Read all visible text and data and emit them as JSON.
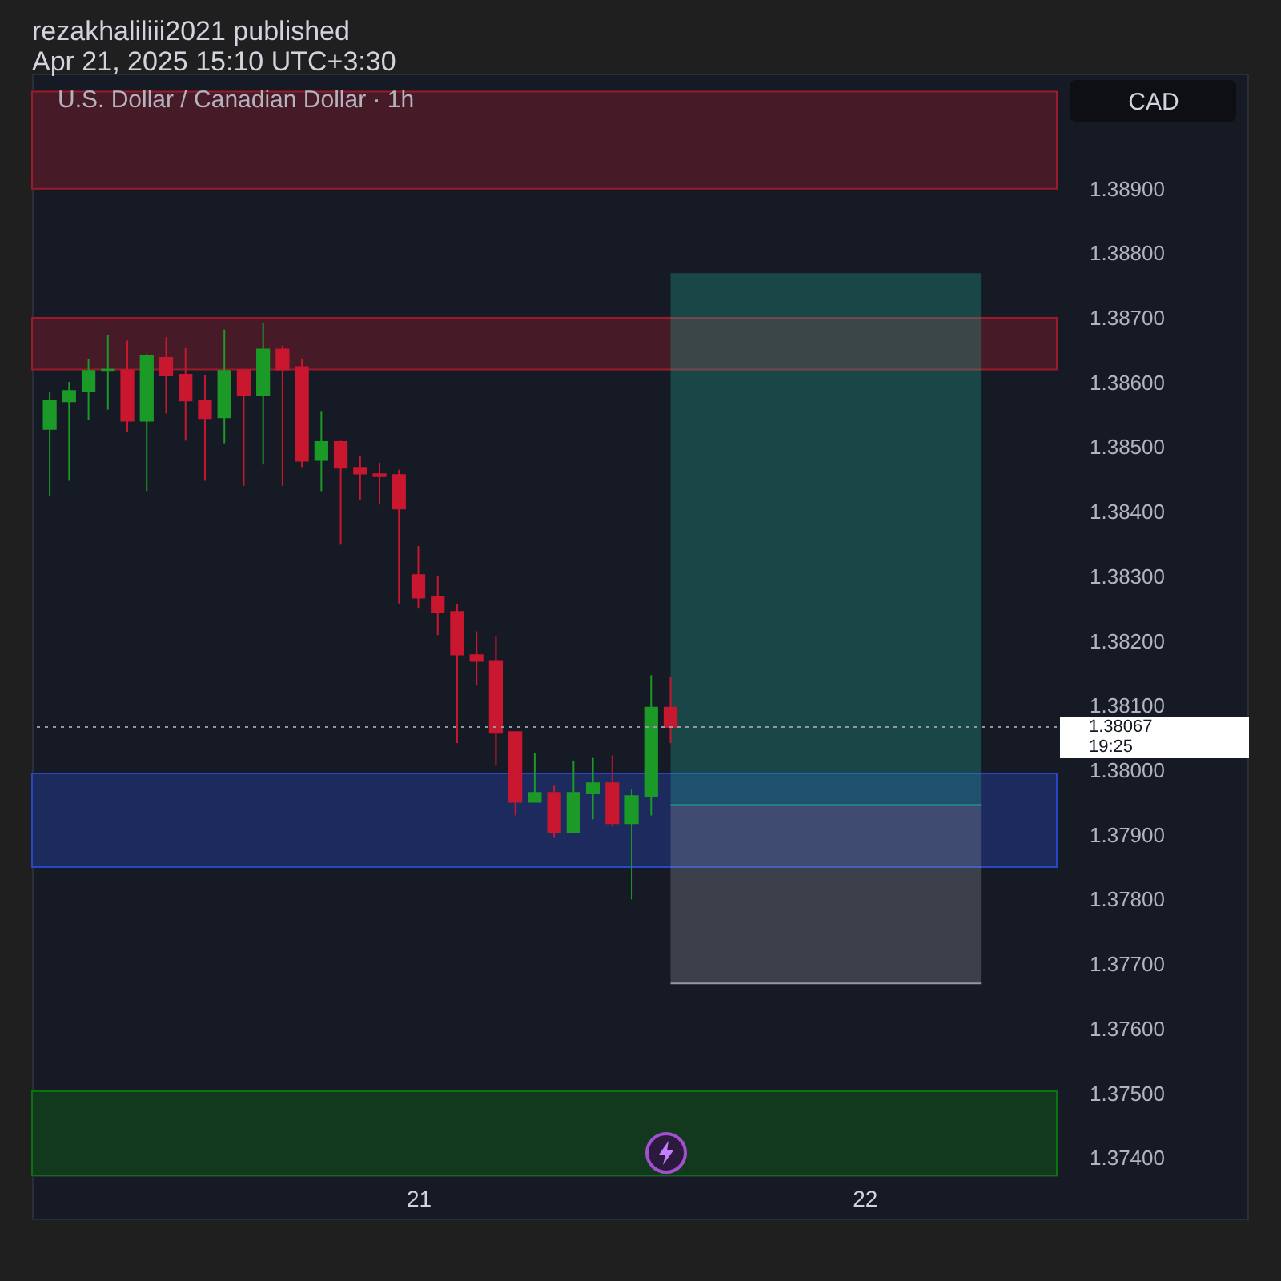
{
  "chart_data": {
    "type": "candlestick",
    "title": "rezakhaliliii2021 published",
    "subtitle": "Apr 21, 2025 15:10 UTC+3:30",
    "ylabel": "CAD",
    "annotations": [
      "U.S. Dollar / Canadian Dollar · 1h"
    ],
    "categories": [
      null,
      null,
      null,
      null,
      null,
      null,
      null,
      null,
      null,
      null,
      null,
      null,
      null,
      null,
      null,
      null,
      null,
      null,
      null,
      "21",
      null,
      null,
      null,
      null,
      null,
      null,
      null,
      null,
      null,
      null,
      null,
      null,
      null,
      null,
      null,
      null,
      null,
      null,
      null,
      null,
      null,
      null,
      "22",
      null,
      null,
      null,
      null,
      null,
      null,
      null,
      null,
      null
    ],
    "ohlc": [
      [
        1.38528,
        1.38585,
        1.38424,
        1.38572
      ],
      [
        1.38571,
        1.38601,
        1.38448,
        1.38587
      ],
      [
        1.38586,
        1.38637,
        1.38542,
        1.38618
      ],
      [
        1.38618,
        1.38674,
        1.38558,
        1.3862
      ],
      [
        1.38619,
        1.38665,
        1.38524,
        1.38541
      ],
      [
        1.38541,
        1.38644,
        1.38432,
        1.38641
      ],
      [
        1.38638,
        1.3867,
        1.38552,
        1.38611
      ],
      [
        1.38612,
        1.38653,
        1.3851,
        1.38572
      ],
      [
        1.38572,
        1.38612,
        1.38448,
        1.38545
      ],
      [
        1.38546,
        1.38682,
        1.38506,
        1.38618
      ],
      [
        1.38619,
        1.38619,
        1.3844,
        1.3858
      ],
      [
        1.3858,
        1.38692,
        1.38473,
        1.38651
      ],
      [
        1.38651,
        1.38657,
        1.3844,
        1.3862
      ],
      [
        1.38624,
        1.38637,
        1.38469,
        1.38479
      ],
      [
        1.3848,
        1.38556,
        1.38432,
        1.38508
      ],
      [
        1.38508,
        1.3851,
        1.38349,
        1.38468
      ],
      [
        1.38468,
        1.38486,
        1.38419,
        1.38459
      ],
      [
        1.38458,
        1.38476,
        1.38411,
        1.38455
      ],
      [
        1.38457,
        1.38465,
        1.38258,
        1.38405
      ],
      [
        1.38302,
        1.38347,
        1.3825,
        1.38267
      ],
      [
        1.38268,
        1.383,
        1.38209,
        1.38244
      ],
      [
        1.38245,
        1.38257,
        1.38042,
        1.38179
      ],
      [
        1.38178,
        1.38215,
        1.38131,
        1.38169
      ],
      [
        1.38169,
        1.38207,
        1.38007,
        1.38058
      ],
      [
        1.38059,
        1.38059,
        1.3793,
        1.37951
      ],
      [
        1.37951,
        1.38026,
        1.37951,
        1.37965
      ],
      [
        1.37965,
        1.37976,
        1.37895,
        1.37904
      ],
      [
        1.37904,
        1.38015,
        1.37904,
        1.37965
      ],
      [
        1.37964,
        1.38019,
        1.37924,
        1.3798
      ],
      [
        1.3798,
        1.38023,
        1.37912,
        1.37918
      ],
      [
        1.37918,
        1.3797,
        1.378,
        1.3796
      ],
      [
        1.37959,
        1.38147,
        1.3793,
        1.38097
      ],
      [
        1.38097,
        1.38145,
        1.38042,
        1.38067
      ],
      null,
      null,
      null,
      null,
      null,
      null,
      null,
      null,
      null,
      null,
      null,
      null,
      null,
      null,
      null,
      null,
      null,
      null,
      null
    ],
    "colors": [
      "#1c9a27",
      "#1c9a27",
      "#1c9a27",
      "#1c9a27",
      "#c9172f",
      "#1c9a27",
      "#c9172f",
      "#c9172f",
      "#c9172f",
      "#1c9a27",
      "#c9172f",
      "#1c9a27",
      "#c9172f",
      "#c9172f",
      "#1c9a27",
      "#c9172f",
      "#c9172f",
      "#c9172f",
      "#c9172f",
      "#c9172f",
      "#c9172f",
      "#c9172f",
      "#c9172f",
      "#c9172f",
      "#c9172f",
      "#1c9a27",
      "#c9172f",
      "#1c9a27",
      "#1c9a27",
      "#c9172f",
      "#1c9a27",
      "#1c9a27",
      "#c9172f",
      null,
      null,
      null,
      null,
      null,
      null,
      null,
      null,
      null,
      null,
      null,
      null,
      null,
      null,
      null,
      null,
      null,
      null,
      null
    ],
    "series": [
      {
        "type": "line",
        "color": "#22ab94",
        "values": [
          null,
          null,
          null,
          null,
          null,
          null,
          null,
          null,
          null,
          null,
          null,
          null,
          null,
          null,
          null,
          null,
          null,
          null,
          null,
          null,
          null,
          null,
          null,
          null,
          null,
          null,
          null,
          null,
          null,
          null,
          null,
          null,
          1.37946,
          1.37946,
          1.37946,
          1.37946,
          1.37946,
          1.37946,
          1.37946,
          1.37946,
          1.37946,
          1.37946,
          1.37946,
          1.37946,
          1.37946,
          1.37946,
          1.37946,
          1.37946,
          1.37946,
          null,
          null,
          null
        ],
        "lower": [
          null,
          null,
          null,
          null,
          null,
          null,
          null,
          null,
          null,
          null,
          null,
          null,
          null,
          null,
          null,
          null,
          null,
          null,
          null,
          null,
          null,
          null,
          null,
          null,
          null,
          null,
          null,
          null,
          null,
          null,
          null,
          null,
          1.37946,
          1.37946,
          1.37946,
          1.37946,
          1.37946,
          1.37946,
          1.37946,
          1.37946,
          1.37946,
          1.37946,
          1.37946,
          1.37946,
          1.37946,
          1.37946,
          1.37946,
          1.37946,
          1.37946,
          null,
          null,
          null
        ],
        "upper": [
          null,
          null,
          null,
          null,
          null,
          null,
          null,
          null,
          null,
          null,
          null,
          null,
          null,
          null,
          null,
          null,
          null,
          null,
          null,
          null,
          null,
          null,
          null,
          null,
          null,
          null,
          null,
          null,
          null,
          null,
          null,
          null,
          1.38769,
          1.38769,
          1.38769,
          1.38769,
          1.38769,
          1.38769,
          1.38769,
          1.38769,
          1.38769,
          1.38769,
          1.38769,
          1.38769,
          1.38769,
          1.38769,
          1.38769,
          1.38769,
          1.38769,
          null,
          null,
          null
        ]
      },
      {
        "type": "line",
        "color": "#9598a1",
        "values": [
          null,
          null,
          null,
          null,
          null,
          null,
          null,
          null,
          null,
          null,
          null,
          null,
          null,
          null,
          null,
          null,
          null,
          null,
          null,
          null,
          null,
          null,
          null,
          null,
          null,
          null,
          null,
          null,
          null,
          null,
          null,
          null,
          1.3767,
          1.3767,
          1.3767,
          1.3767,
          1.3767,
          1.3767,
          1.3767,
          1.3767,
          1.3767,
          1.3767,
          1.3767,
          1.3767,
          1.3767,
          1.3767,
          1.3767,
          1.3767,
          1.3767,
          null,
          null,
          null
        ],
        "lower": [
          null,
          null,
          null,
          null,
          null,
          null,
          null,
          null,
          null,
          null,
          null,
          null,
          null,
          null,
          null,
          null,
          null,
          null,
          null,
          null,
          null,
          null,
          null,
          null,
          null,
          null,
          null,
          null,
          null,
          null,
          null,
          null,
          1.3767,
          1.3767,
          1.3767,
          1.3767,
          1.3767,
          1.3767,
          1.3767,
          1.3767,
          1.3767,
          1.3767,
          1.3767,
          1.3767,
          1.3767,
          1.3767,
          1.3767,
          1.3767,
          1.3767,
          null,
          null,
          null
        ],
        "upper": [
          null,
          null,
          null,
          null,
          null,
          null,
          null,
          null,
          null,
          null,
          null,
          null,
          null,
          null,
          null,
          null,
          null,
          null,
          null,
          null,
          null,
          null,
          null,
          null,
          null,
          null,
          null,
          null,
          null,
          null,
          null,
          null,
          1.37946,
          1.37946,
          1.37946,
          1.37946,
          1.37946,
          1.37946,
          1.37946,
          1.37946,
          1.37946,
          1.37946,
          1.37946,
          1.37946,
          1.37946,
          1.37946,
          1.37946,
          1.37946,
          1.37946,
          null,
          null,
          null
        ]
      }
    ],
    "bands": [
      {
        "axis": "y",
        "from": 1.389,
        "to": 1.3905,
        "color": "#461a27"
      },
      {
        "axis": "y",
        "from": 1.3862,
        "to": 1.387,
        "color": "#461a27"
      },
      {
        "axis": "y",
        "from": 1.3785,
        "to": 1.37995,
        "color": "#1c2a5e"
      },
      {
        "axis": "y",
        "from": 1.37373,
        "to": 1.37503,
        "color": "#12391e"
      }
    ],
    "ref_lines": [
      {
        "axis": "y",
        "value": 1.38067,
        "label": "1.38067\n19:25",
        "color": "#9598a1",
        "line_style": "dotted"
      }
    ],
    "ylim": [
      1.37373,
      1.39078
    ],
    "yticks": [
      {
        "value": 1.374,
        "label": "1.37400"
      },
      {
        "value": 1.375,
        "label": "1.37500"
      },
      {
        "value": 1.376,
        "label": "1.37600"
      },
      {
        "value": 1.377,
        "label": "1.37700"
      },
      {
        "value": 1.378,
        "label": "1.37800"
      },
      {
        "value": 1.379,
        "label": "1.37900"
      },
      {
        "value": 1.38,
        "label": "1.38000"
      },
      {
        "value": 1.381,
        "label": "1.38100"
      },
      {
        "value": 1.382,
        "label": "1.38200"
      },
      {
        "value": 1.383,
        "label": "1.38300"
      },
      {
        "value": 1.384,
        "label": "1.38400"
      },
      {
        "value": 1.385,
        "label": "1.38500"
      },
      {
        "value": 1.386,
        "label": "1.38600"
      },
      {
        "value": 1.387,
        "label": "1.38700"
      },
      {
        "value": 1.388,
        "label": "1.38800"
      },
      {
        "value": 1.389,
        "label": "1.38900"
      }
    ]
  }
}
